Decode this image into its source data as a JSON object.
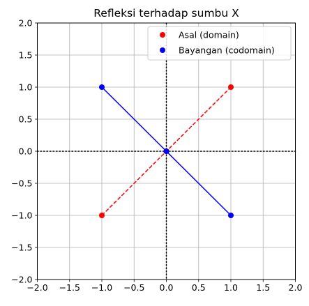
{
  "chart_data": {
    "type": "line",
    "title": "Refleksi terhadap sumbu X",
    "xlabel": "",
    "ylabel": "",
    "xlim": [
      -2.0,
      2.0
    ],
    "ylim": [
      -2.0,
      2.0
    ],
    "xticks": [
      -2.0,
      -1.5,
      -1.0,
      -0.5,
      0.0,
      0.5,
      1.0,
      1.5,
      2.0
    ],
    "yticks": [
      -2.0,
      -1.5,
      -1.0,
      -0.5,
      0.0,
      0.5,
      1.0,
      1.5,
      2.0
    ],
    "xtick_labels": [
      "−2.0",
      "−1.5",
      "−1.0",
      "−0.5",
      "0.0",
      "0.5",
      "1.0",
      "1.5",
      "2.0"
    ],
    "ytick_labels": [
      "−2.0",
      "−1.5",
      "−1.0",
      "−0.5",
      "0.0",
      "0.5",
      "1.0",
      "1.5",
      "2.0"
    ],
    "grid": true,
    "legend_position": "top-right",
    "reference_lines": [
      {
        "orientation": "horizontal",
        "value": 0.0,
        "style": "dotted",
        "color": "#000000"
      },
      {
        "orientation": "vertical",
        "value": 0.0,
        "style": "dotted",
        "color": "#000000"
      }
    ],
    "series": [
      {
        "name": "Asal (domain)",
        "color": "#ff0000",
        "line_style": "dashed",
        "marker": "circle",
        "points": [
          [
            -1.0,
            -1.0
          ],
          [
            0.0,
            0.0
          ],
          [
            1.0,
            1.0
          ]
        ]
      },
      {
        "name": "Bayangan (codomain)",
        "color": "#0000ff",
        "line_style": "solid",
        "marker": "circle",
        "points": [
          [
            -1.0,
            1.0
          ],
          [
            0.0,
            0.0
          ],
          [
            1.0,
            -1.0
          ]
        ]
      }
    ]
  }
}
